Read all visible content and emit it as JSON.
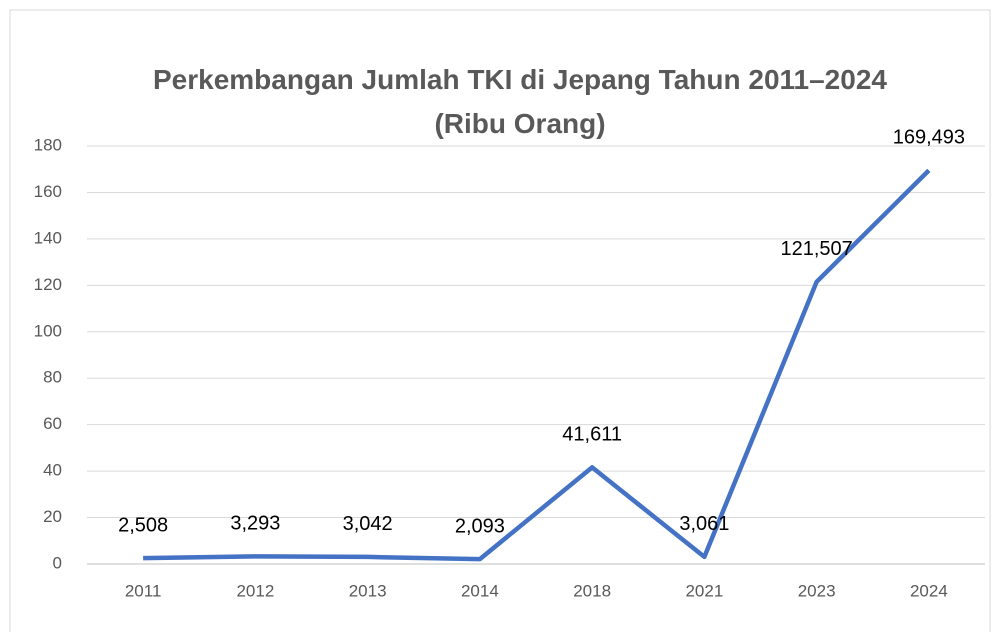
{
  "chart_data": {
    "type": "line",
    "title": "Perkembangan Jumlah TKI di Jepang Tahun 2011–2024 (Ribu Orang)",
    "categories": [
      "2011",
      "2012",
      "2013",
      "2014",
      "2018",
      "2021",
      "2023",
      "2024"
    ],
    "series": [
      {
        "name": "Jumlah TKI",
        "color": "#4472c4",
        "values": [
          2.508,
          3.293,
          3.042,
          2.093,
          41.611,
          3.061,
          121.507,
          169.493
        ],
        "value_labels": [
          "2,508",
          "3,293",
          "3,042",
          "2,093",
          "41,611",
          "3,061",
          "121,507",
          "169,493"
        ]
      }
    ],
    "ylim": [
      0,
      180
    ],
    "yticks": [
      0,
      20,
      40,
      60,
      80,
      100,
      120,
      140,
      160,
      180
    ],
    "grid": true
  }
}
